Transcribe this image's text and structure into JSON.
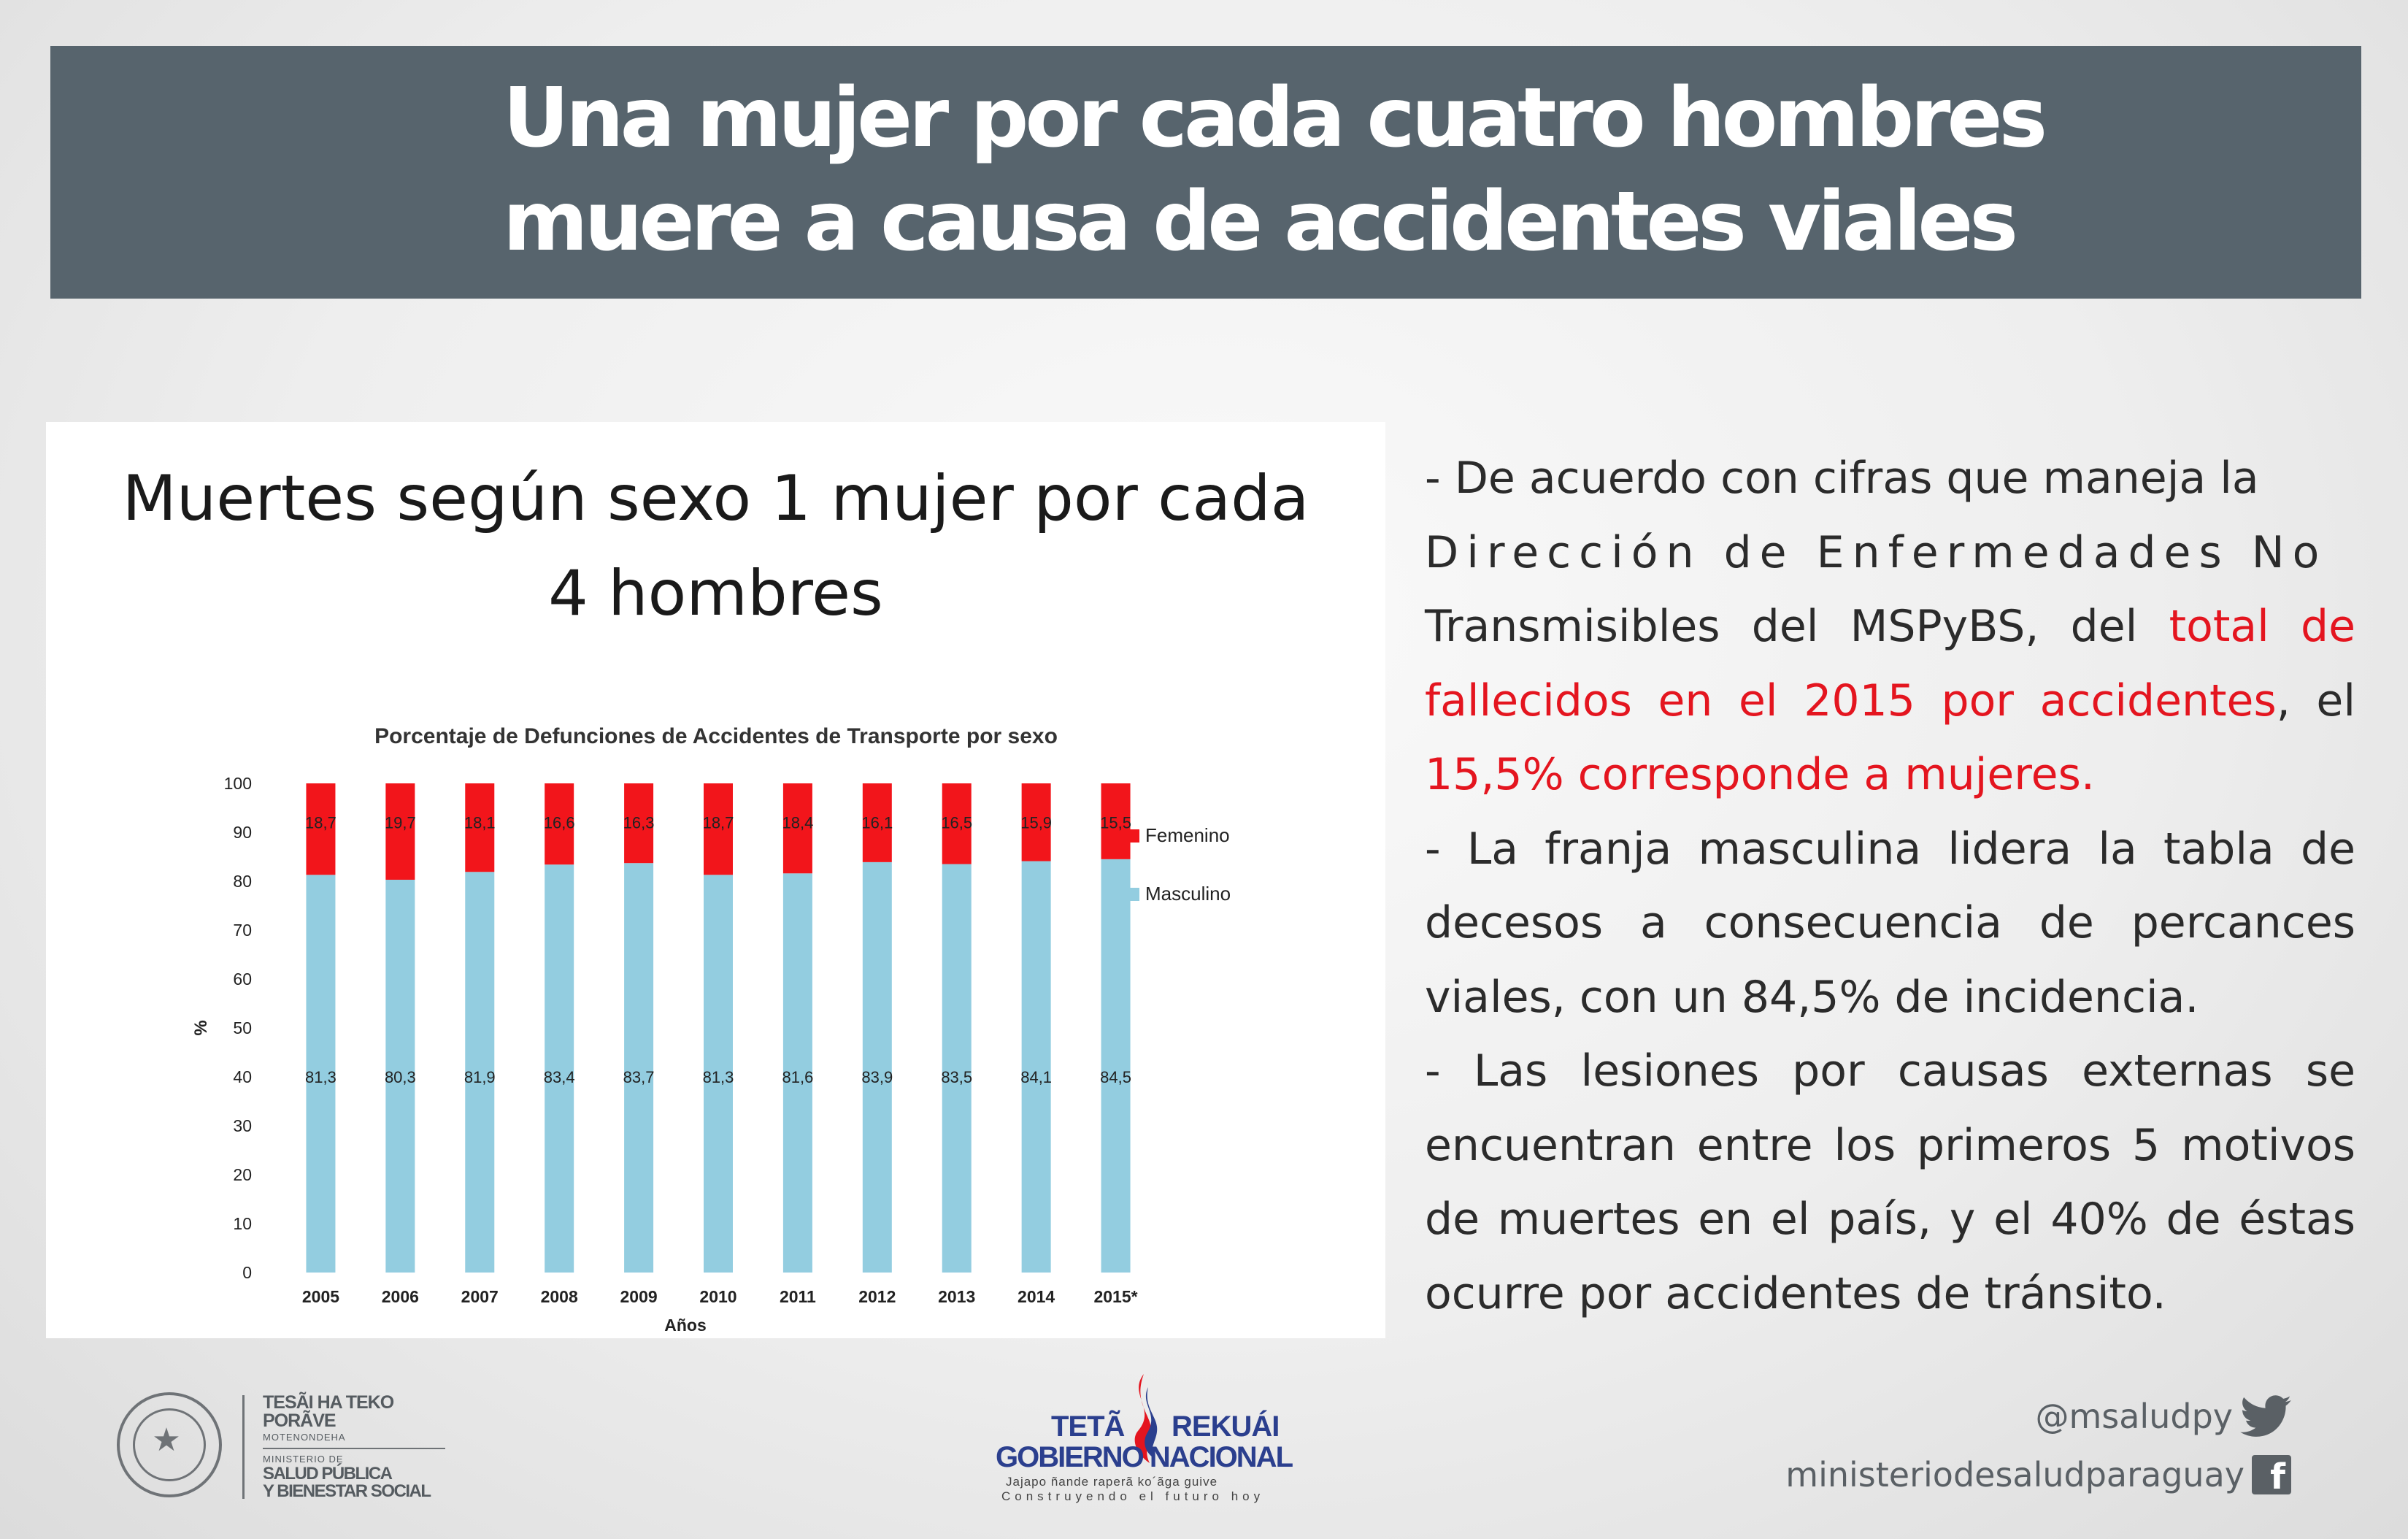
{
  "header": {
    "title_line1": "Una mujer por cada cuatro hombres",
    "title_line2": "muere a causa de accidentes viales"
  },
  "slide": {
    "title_line1": "Muertes según sexo 1 mujer por cada",
    "title_line2": "4 hombres"
  },
  "chart_data": {
    "type": "bar",
    "stacked": true,
    "title": "Porcentaje de Defunciones de Accidentes de Transporte por sexo",
    "xlabel": "Años",
    "ylabel": "%",
    "ylim": [
      0,
      100
    ],
    "yticks": [
      "0",
      "10",
      "20",
      "30",
      "40",
      "50",
      "60",
      "70",
      "80",
      "90",
      "100"
    ],
    "categories": [
      "2005",
      "2006",
      "2007",
      "2008",
      "2009",
      "2010",
      "2011",
      "2012",
      "2013",
      "2014",
      "2015*"
    ],
    "series": [
      {
        "name": "Masculino",
        "color": "#93cde0",
        "values": [
          81.3,
          80.3,
          81.9,
          83.4,
          83.7,
          81.3,
          81.6,
          83.9,
          83.5,
          84.1,
          84.5
        ],
        "labels": [
          "81,3",
          "80,3",
          "81,9",
          "83,4",
          "83,7",
          "81,3",
          "81,6",
          "83,9",
          "83,5",
          "84,1",
          "84,5"
        ]
      },
      {
        "name": "Femenino",
        "color": "#f2151b",
        "values": [
          18.7,
          19.7,
          18.1,
          16.6,
          16.3,
          18.7,
          18.4,
          16.1,
          16.5,
          15.9,
          15.5
        ],
        "labels": [
          "18,7",
          "19,7",
          "18,1",
          "16,6",
          "16,3",
          "18,7",
          "18,4",
          "16,1",
          "16,5",
          "15,9",
          "15,5"
        ]
      }
    ],
    "legend_position": "right",
    "grid": false
  },
  "text": {
    "p1_a": "- De acuerdo con cifras que maneja la",
    "p1_b": "Dirección de Enfermedades No",
    "p1_c": "Transmisibles del MSPyBS, del ",
    "p1_d": "total de fallecidos en el 2015 por accidentes",
    "p1_e": ", el ",
    "p1_f": "15,5% corresponde a mujeres.",
    "p2": "- La franja masculina lidera la tabla de decesos a consecuencia de percances viales, con un 84,5% de incidencia.",
    "p3": "- Las lesiones por causas externas se encuentran entre los primeros 5 motivos de muertes en el país, y el 40% de éstas ocurre por accidentes de tránsito."
  },
  "footer": {
    "ministry_line1": "TESÃI HA TEKO",
    "ministry_line2": "PORÃVE",
    "ministry_line3": "MOTENONDEHA",
    "ministry_line4": "MINISTERIO DE",
    "ministry_line5": "SALUD PÚBLICA",
    "ministry_line6": "Y BIENESTAR SOCIAL",
    "gov_line1a": "TETÃ",
    "gov_line1b": "REKUÁI",
    "gov_line2": "GOBIERNO NACIONAL",
    "gov_line3": "Jajapo ñande raperã ko´ãga guive",
    "gov_line4": "Construyendo el futuro hoy",
    "twitter": "@msaludpy",
    "facebook": "ministeriodesaludparaguay"
  },
  "icons": [
    "twitter-bird-icon",
    "facebook-icon",
    "national-seal-icon",
    "flag-flame-icon"
  ]
}
